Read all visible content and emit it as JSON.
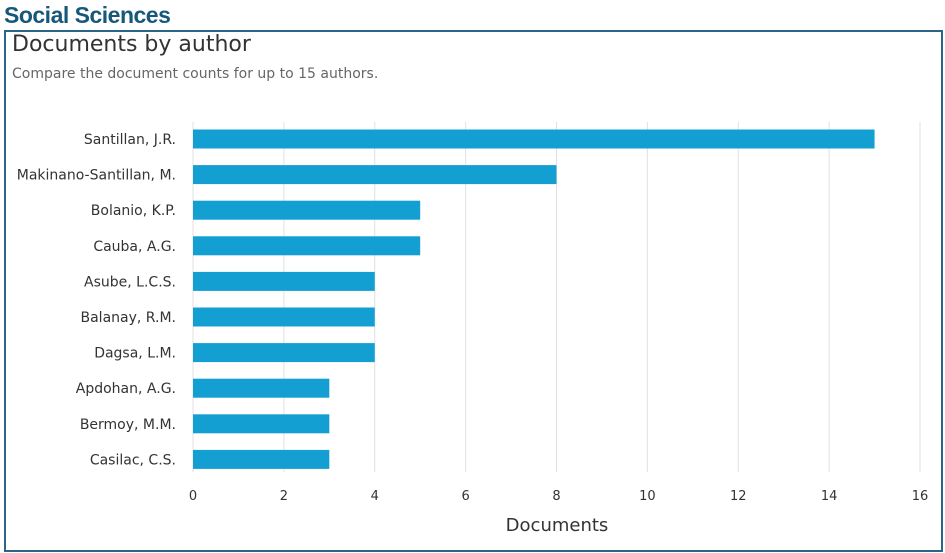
{
  "page_title": "Social Sciences",
  "chart_data": {
    "type": "bar",
    "orientation": "horizontal",
    "title": "Documents by author",
    "subtitle": "Compare the document counts for up to 15 authors.",
    "categories": [
      "Santillan, J.R.",
      "Makinano-Santillan, M.",
      "Bolanio, K.P.",
      "Cauba, A.G.",
      "Asube, L.C.S.",
      "Balanay, R.M.",
      "Dagsa, L.M.",
      "Apdohan, A.G.",
      "Bermoy, M.M.",
      "Casilac, C.S."
    ],
    "values": [
      15,
      8,
      5,
      5,
      4,
      4,
      4,
      3,
      3,
      3
    ],
    "xlabel": "Documents",
    "ylabel": "",
    "xlim": [
      0,
      16
    ],
    "xticks": [
      "0",
      "2",
      "4",
      "6",
      "8",
      "10",
      "12",
      "14",
      "16"
    ],
    "grid": true,
    "bar_color": "#149fd3"
  }
}
